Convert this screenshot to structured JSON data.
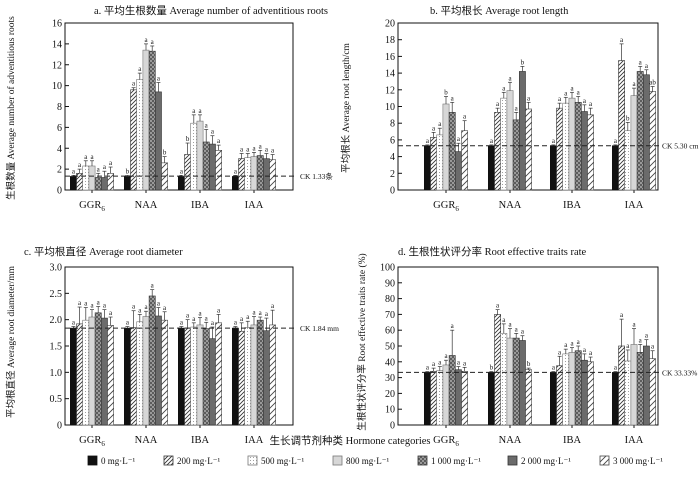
{
  "x_title": "生长调节剂种类  Hormone categories",
  "chart_data": [
    {
      "type": "bar",
      "title": "a. 平均生根数量  Average number of adventitious roots",
      "ylabel": "生根数量   Average number of adventitious roots",
      "categories": [
        "GGR",
        "NAA",
        "IBA",
        "IAA"
      ],
      "category_subscripts": [
        "6",
        "",
        "",
        ""
      ],
      "ylim": [
        0,
        16
      ],
      "yticks": [
        0,
        2,
        4,
        6,
        8,
        10,
        12,
        14,
        16
      ],
      "reference_line": {
        "value": 1.33,
        "label": "CK 1.33条"
      },
      "series": [
        {
          "name": "0 mg·L⁻¹",
          "values": [
            1.3,
            1.3,
            1.3,
            1.3
          ],
          "errors": [
            0.1,
            0.1,
            0.1,
            0.1
          ],
          "sig": [
            "a",
            "b",
            "a",
            "a"
          ]
        },
        {
          "name": "200 mg·L⁻¹",
          "values": [
            1.6,
            9.6,
            3.4,
            3.0
          ],
          "errors": [
            0.4,
            0.2,
            1.1,
            0.5
          ],
          "sig": [
            "a",
            "a",
            "b",
            "a"
          ]
        },
        {
          "name": "500 mg·L⁻¹",
          "values": [
            2.3,
            10.6,
            6.4,
            3.1
          ],
          "errors": [
            0.5,
            0.6,
            0.8,
            0.4
          ],
          "sig": [
            "a",
            "a",
            "a",
            "a"
          ]
        },
        {
          "name": "800 mg·L⁻¹",
          "values": [
            2.3,
            13.4,
            6.6,
            3.2
          ],
          "errors": [
            0.5,
            0.6,
            0.6,
            0.4
          ],
          "sig": [
            "a",
            "a",
            "a",
            "a"
          ]
        },
        {
          "name": "1 000 mg·L⁻¹",
          "values": [
            1.2,
            13.3,
            4.6,
            3.3
          ],
          "errors": [
            0.4,
            0.5,
            1.2,
            0.5
          ],
          "sig": [
            "a",
            "a",
            "a",
            "a"
          ]
        },
        {
          "name": "2 000 mg·L⁻¹",
          "values": [
            1.2,
            9.4,
            4.4,
            3.0
          ],
          "errors": [
            0.6,
            0.9,
            0.8,
            0.5
          ],
          "sig": [
            "a",
            "a",
            "a",
            "a"
          ]
        },
        {
          "name": "3 000 mg·L⁻¹",
          "values": [
            1.6,
            2.6,
            3.8,
            2.9
          ],
          "errors": [
            0.6,
            0.6,
            0.5,
            0.5
          ],
          "sig": [
            "a",
            "b",
            "a",
            "a"
          ]
        }
      ]
    },
    {
      "type": "bar",
      "title": "b. 平均根长  Average root length",
      "ylabel": "平均根长  Average root length/cm",
      "categories": [
        "GGR",
        "NAA",
        "IBA",
        "IAA"
      ],
      "category_subscripts": [
        "6",
        "",
        "",
        ""
      ],
      "ylim": [
        0,
        20
      ],
      "yticks": [
        0,
        2,
        4,
        6,
        8,
        10,
        12,
        14,
        16,
        18,
        20
      ],
      "reference_line": {
        "value": 5.3,
        "label": "CK 5.30 cm"
      },
      "series": [
        {
          "name": "0 mg·L⁻¹",
          "values": [
            5.3,
            5.3,
            5.3,
            5.3
          ],
          "errors": [
            0.1,
            0.1,
            0.1,
            0.1
          ],
          "sig": [
            "a",
            "a",
            "a",
            "a"
          ]
        },
        {
          "name": "200 mg·L⁻¹",
          "values": [
            6.3,
            9.3,
            9.8,
            15.5
          ],
          "errors": [
            0.6,
            0.5,
            0.6,
            2.0
          ],
          "sig": [
            "a",
            "a",
            "a",
            "a"
          ]
        },
        {
          "name": "500 mg·L⁻¹",
          "values": [
            6.6,
            11.0,
            10.4,
            7.1
          ],
          "errors": [
            0.8,
            0.7,
            0.7,
            1.0
          ],
          "sig": [
            "a",
            "a",
            "a",
            "b"
          ]
        },
        {
          "name": "800 mg·L⁻¹",
          "values": [
            10.3,
            11.9,
            11.0,
            11.3
          ],
          "errors": [
            0.9,
            1.0,
            0.7,
            0.9
          ],
          "sig": [
            "b",
            "a",
            "a",
            "a"
          ]
        },
        {
          "name": "1 000 mg·L⁻¹",
          "values": [
            9.3,
            8.4,
            10.5,
            14.2
          ],
          "errors": [
            1.2,
            0.9,
            0.7,
            0.6
          ],
          "sig": [
            "a",
            "a",
            "a",
            "a"
          ]
        },
        {
          "name": "2 000 mg·L⁻¹",
          "values": [
            4.6,
            14.2,
            9.4,
            13.8
          ],
          "errors": [
            1.0,
            0.6,
            0.8,
            0.6
          ],
          "sig": [
            "a",
            "b",
            "a",
            "a"
          ]
        },
        {
          "name": "3 000 mg·L⁻¹",
          "values": [
            7.1,
            9.7,
            9.0,
            11.8
          ],
          "errors": [
            1.2,
            0.8,
            0.8,
            0.6
          ],
          "sig": [
            "a",
            "a",
            "a",
            "ab"
          ]
        }
      ]
    },
    {
      "type": "bar",
      "title": "c. 平均根直径  Average root diameter",
      "ylabel": "平均根直径  Average root diameter/mm",
      "categories": [
        "GGR",
        "NAA",
        "IBA",
        "IAA"
      ],
      "category_subscripts": [
        "6",
        "",
        "",
        ""
      ],
      "ylim": [
        0,
        3.0
      ],
      "yticks": [
        0,
        0.5,
        1.0,
        1.5,
        2.0,
        2.5,
        3.0
      ],
      "ytick_labels": [
        "0",
        "0.5",
        "1.0",
        "1.5",
        "2.0",
        "2.5",
        "3.0"
      ],
      "reference_line": {
        "value": 1.84,
        "label": "CK 1.84 mm"
      },
      "series": [
        {
          "name": "0 mg·L⁻¹",
          "values": [
            1.84,
            1.84,
            1.84,
            1.84
          ],
          "errors": [
            0.03,
            0.03,
            0.03,
            0.03
          ],
          "sig": [
            "a",
            "a",
            "a",
            "a"
          ]
        },
        {
          "name": "200 mg·L⁻¹",
          "values": [
            1.92,
            1.85,
            1.84,
            1.78
          ],
          "errors": [
            0.32,
            0.32,
            0.16,
            0.16
          ],
          "sig": [
            "a",
            "a",
            "a",
            "a"
          ]
        },
        {
          "name": "500 mg·L⁻¹",
          "values": [
            1.99,
            1.96,
            1.86,
            1.85
          ],
          "errors": [
            0.24,
            0.14,
            0.08,
            0.12
          ],
          "sig": [
            "a",
            "a",
            "a",
            "a"
          ]
        },
        {
          "name": "800 mg·L⁻¹",
          "values": [
            2.05,
            2.06,
            1.9,
            1.9
          ],
          "errors": [
            0.14,
            0.1,
            0.14,
            0.16
          ],
          "sig": [
            "a",
            "a",
            "a",
            "a"
          ]
        },
        {
          "name": "1 000 mg·L⁻¹",
          "values": [
            2.13,
            2.45,
            1.83,
            1.99
          ],
          "errors": [
            0.12,
            0.12,
            0.12,
            0.06
          ],
          "sig": [
            "a",
            "a",
            "a",
            "a"
          ]
        },
        {
          "name": "2 000 mg·L⁻¹",
          "values": [
            2.03,
            2.07,
            1.64,
            1.79
          ],
          "errors": [
            0.16,
            0.16,
            0.22,
            0.24
          ],
          "sig": [
            "a",
            "a",
            "a",
            "a"
          ]
        },
        {
          "name": "3 000 mg·L⁻¹",
          "values": [
            1.89,
            1.99,
            1.94,
            1.9
          ],
          "errors": [
            0.16,
            0.16,
            0.16,
            0.28
          ],
          "sig": [
            "a",
            "a",
            "a",
            "a"
          ]
        }
      ]
    },
    {
      "type": "bar",
      "title": "d. 生根性状评分率  Root effective traits rate",
      "ylabel": "生根性状评分率  Root effective traits rate (%)",
      "categories": [
        "GGR",
        "NAA",
        "IBA",
        "IAA"
      ],
      "category_subscripts": [
        "6",
        "",
        "",
        ""
      ],
      "ylim": [
        0,
        100
      ],
      "yticks": [
        0,
        10,
        20,
        30,
        40,
        50,
        60,
        70,
        80,
        90,
        100
      ],
      "reference_line": {
        "value": 33.33,
        "label": "CK 33.33%"
      },
      "series": [
        {
          "name": "0 mg·L⁻¹",
          "values": [
            33.3,
            33.3,
            33.3,
            33.3
          ],
          "errors": [
            0.5,
            0.5,
            0.5,
            0.5
          ],
          "sig": [
            "a",
            "b",
            "a",
            "a"
          ]
        },
        {
          "name": "200 mg·L⁻¹",
          "values": [
            34.0,
            70.0,
            37.5,
            50.0
          ],
          "errors": [
            2.0,
            3.0,
            6.0,
            17.0
          ],
          "sig": [
            "a",
            "a",
            "a",
            "a"
          ]
        },
        {
          "name": "500 mg·L⁻¹",
          "values": [
            34.5,
            58.0,
            45.0,
            40.5
          ],
          "errors": [
            2.5,
            6.0,
            3.0,
            7.0
          ],
          "sig": [
            "a",
            "a",
            "a",
            "a"
          ]
        },
        {
          "name": "800 mg·L⁻¹",
          "values": [
            38.0,
            55.0,
            46.0,
            51.0
          ],
          "errors": [
            3.0,
            6.0,
            3.0,
            10.0
          ],
          "sig": [
            "a",
            "a",
            "a",
            "a"
          ]
        },
        {
          "name": "1 000 mg·L⁻¹",
          "values": [
            44.0,
            55.0,
            47.0,
            46.0
          ],
          "errors": [
            16.0,
            3.0,
            3.0,
            5.0
          ],
          "sig": [
            "a",
            "a",
            "a",
            "a"
          ]
        },
        {
          "name": "2 000 mg·L⁻¹",
          "values": [
            35.0,
            53.5,
            41.0,
            50.0
          ],
          "errors": [
            2.0,
            3.0,
            4.0,
            4.0
          ],
          "sig": [
            "a",
            "a",
            "a",
            "a"
          ]
        },
        {
          "name": "3 000 mg·L⁻¹",
          "values": [
            34.0,
            35.0,
            40.0,
            42.0
          ],
          "errors": [
            2.5,
            1.0,
            3.0,
            5.0
          ],
          "sig": [
            "a",
            "b",
            "a",
            "a"
          ]
        }
      ]
    }
  ]
}
